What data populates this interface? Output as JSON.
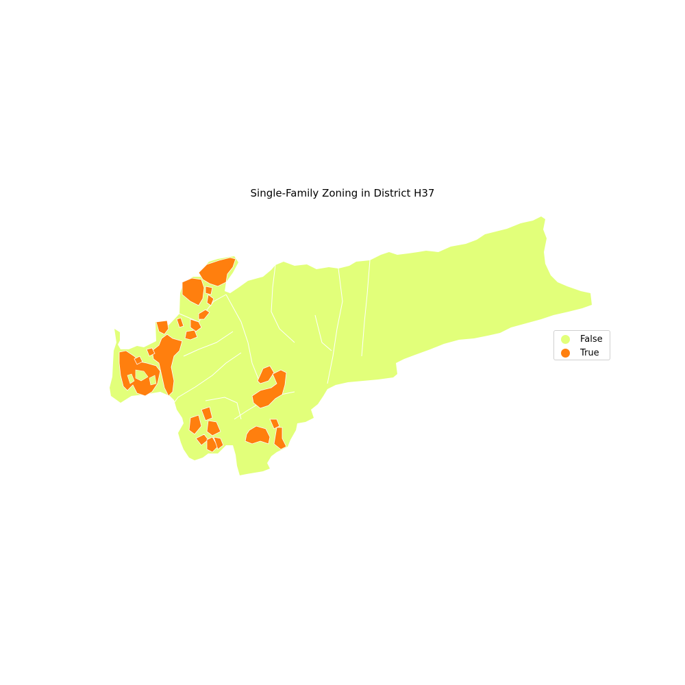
{
  "title": "Single-Family Zoning in District H37",
  "legend": {
    "items": [
      {
        "label": "False",
        "color": "#e2ff7a"
      },
      {
        "label": "True",
        "color": "#ff7f0e"
      }
    ]
  },
  "colors": {
    "false_fill": "#e2ff7a",
    "true_fill": "#ff7f0e",
    "boundary": "#ffffff"
  }
}
